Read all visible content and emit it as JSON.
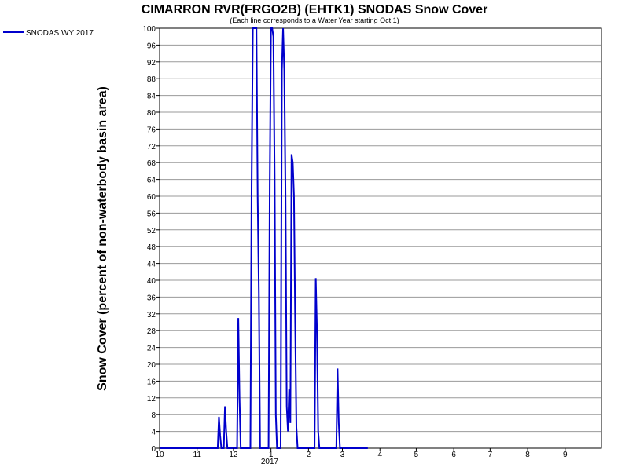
{
  "chart_data": {
    "type": "line",
    "title": "CIMARRON RVR(FRGO2B) (EHTK1) SNODAS Snow Cover",
    "subtitle": "(Each line corresponds to a Water Year starting Oct 1)",
    "ylabel": "Snow Cover (percent of non-waterbody basin area)",
    "xlabel": "",
    "ylim": [
      0,
      100
    ],
    "yticks": [
      0,
      4,
      8,
      12,
      16,
      20,
      24,
      28,
      32,
      36,
      40,
      44,
      48,
      52,
      56,
      60,
      64,
      68,
      72,
      76,
      80,
      84,
      88,
      92,
      96,
      100
    ],
    "xlim": [
      "2016-10-01",
      "2017-09-30"
    ],
    "xticks": [
      {
        "label": "10",
        "date": "2016-10-01"
      },
      {
        "label": "11",
        "date": "2016-11-01"
      },
      {
        "label": "12",
        "date": "2016-12-01"
      },
      {
        "label": "1",
        "date": "2017-01-01"
      },
      {
        "label": "2",
        "date": "2017-02-01"
      },
      {
        "label": "3",
        "date": "2017-03-01"
      },
      {
        "label": "4",
        "date": "2017-04-01"
      },
      {
        "label": "5",
        "date": "2017-05-01"
      },
      {
        "label": "6",
        "date": "2017-06-01"
      },
      {
        "label": "7",
        "date": "2017-07-01"
      },
      {
        "label": "8",
        "date": "2017-08-01"
      },
      {
        "label": "9",
        "date": "2017-09-01"
      }
    ],
    "year_label": "2017",
    "grid": true,
    "legend_position": "top-left",
    "series": [
      {
        "name": "SNODAS WY 2017",
        "color": "#0000cc",
        "points": [
          [
            "2016-10-01",
            0
          ],
          [
            "2016-11-18",
            0
          ],
          [
            "2016-11-19",
            7.5
          ],
          [
            "2016-11-20",
            3
          ],
          [
            "2016-11-21",
            0
          ],
          [
            "2016-11-23",
            0
          ],
          [
            "2016-11-24",
            10
          ],
          [
            "2016-11-25",
            4
          ],
          [
            "2016-11-26",
            0
          ],
          [
            "2016-12-04",
            0
          ],
          [
            "2016-12-05",
            31
          ],
          [
            "2016-12-06",
            12
          ],
          [
            "2016-12-07",
            0
          ],
          [
            "2016-12-15",
            0
          ],
          [
            "2016-12-16",
            62
          ],
          [
            "2016-12-17",
            100
          ],
          [
            "2016-12-18",
            100
          ],
          [
            "2016-12-19",
            100
          ],
          [
            "2016-12-20",
            100
          ],
          [
            "2016-12-21",
            60
          ],
          [
            "2016-12-22",
            37
          ],
          [
            "2016-12-23",
            0
          ],
          [
            "2016-12-30",
            0
          ],
          [
            "2016-12-31",
            63
          ],
          [
            "2017-01-01",
            100
          ],
          [
            "2017-01-02",
            100
          ],
          [
            "2017-01-03",
            98
          ],
          [
            "2017-01-04",
            65
          ],
          [
            "2017-01-05",
            8
          ],
          [
            "2017-01-06",
            0
          ],
          [
            "2017-01-09",
            0
          ],
          [
            "2017-01-10",
            90
          ],
          [
            "2017-01-11",
            100
          ],
          [
            "2017-01-12",
            90
          ],
          [
            "2017-01-13",
            60
          ],
          [
            "2017-01-14",
            10
          ],
          [
            "2017-01-15",
            4
          ],
          [
            "2017-01-16",
            14
          ],
          [
            "2017-01-17",
            6
          ],
          [
            "2017-01-18",
            70
          ],
          [
            "2017-01-19",
            68
          ],
          [
            "2017-01-20",
            60
          ],
          [
            "2017-01-21",
            30
          ],
          [
            "2017-01-22",
            5
          ],
          [
            "2017-01-23",
            0
          ],
          [
            "2017-02-06",
            0
          ],
          [
            "2017-02-07",
            40.5
          ],
          [
            "2017-02-08",
            28
          ],
          [
            "2017-02-09",
            4
          ],
          [
            "2017-02-10",
            0
          ],
          [
            "2017-02-24",
            0
          ],
          [
            "2017-02-25",
            19
          ],
          [
            "2017-02-26",
            6
          ],
          [
            "2017-02-27",
            0
          ],
          [
            "2017-03-22",
            0
          ]
        ]
      }
    ]
  }
}
